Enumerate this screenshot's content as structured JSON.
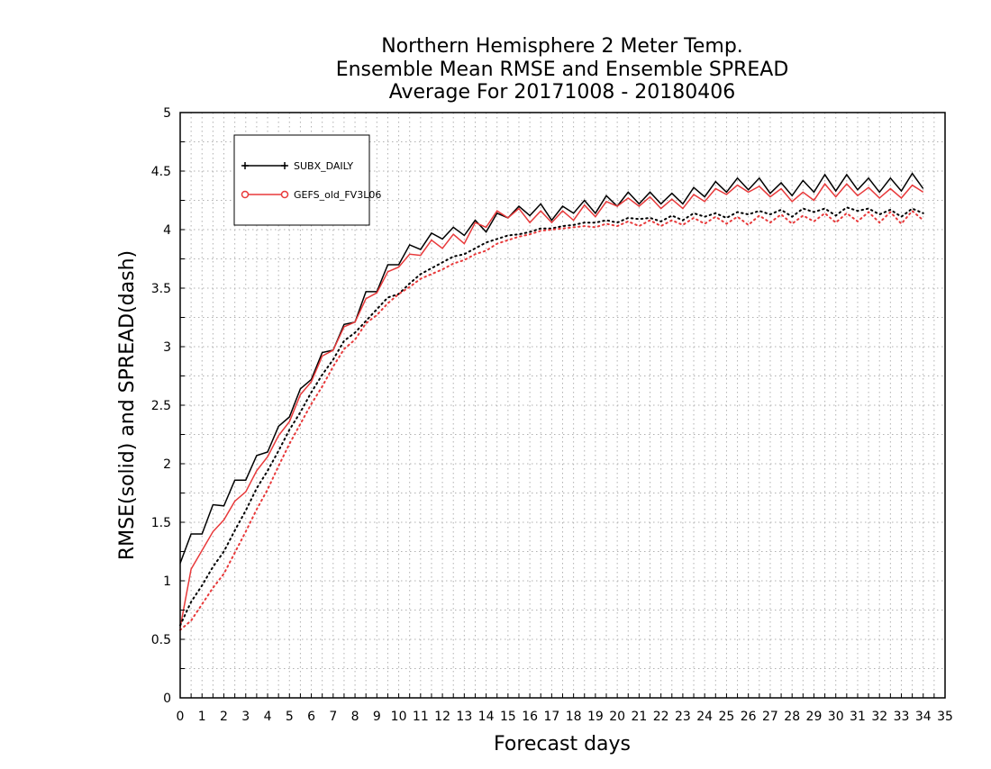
{
  "chart_data": {
    "type": "line",
    "title": [
      "Northern Hemisphere 2 Meter Temp.",
      "Ensemble Mean RMSE and Ensemble SPREAD",
      "Average For 20171008 - 20180406"
    ],
    "xlabel": "Forecast days",
    "ylabel": "RMSE(solid) and SPREAD(dash)",
    "xlim": [
      0,
      35
    ],
    "ylim": [
      0,
      5
    ],
    "x_ticks": [
      "0",
      "1",
      "2",
      "3",
      "4",
      "5",
      "6",
      "7",
      "8",
      "9",
      "10",
      "11",
      "12",
      "13",
      "14",
      "15",
      "16",
      "17",
      "18",
      "19",
      "20",
      "21",
      "22",
      "23",
      "24",
      "25",
      "26",
      "27",
      "28",
      "29",
      "30",
      "31",
      "32",
      "33",
      "34",
      "35"
    ],
    "y_ticks": [
      "0",
      "0.5",
      "1",
      "1.5",
      "2",
      "2.5",
      "3",
      "3.5",
      "4",
      "4.5",
      "5"
    ],
    "grid": true,
    "legend_position": "top-left",
    "x_step": 0.5,
    "series": [
      {
        "name": "SUBX_DAILY",
        "metric": "RMSE",
        "style": "solid",
        "marker": "plus",
        "color": "#000000",
        "values": [
          1.15,
          1.4,
          1.4,
          1.65,
          1.64,
          1.86,
          1.86,
          2.07,
          2.1,
          2.32,
          2.4,
          2.64,
          2.72,
          2.95,
          2.97,
          3.19,
          3.21,
          3.47,
          3.47,
          3.7,
          3.7,
          3.87,
          3.83,
          3.97,
          3.92,
          4.02,
          3.95,
          4.08,
          3.98,
          4.14,
          4.1,
          4.2,
          4.12,
          4.22,
          4.08,
          4.2,
          4.14,
          4.25,
          4.14,
          4.29,
          4.2,
          4.32,
          4.22,
          4.32,
          4.22,
          4.31,
          4.22,
          4.36,
          4.28,
          4.41,
          4.32,
          4.44,
          4.34,
          4.44,
          4.31,
          4.4,
          4.29,
          4.42,
          4.32,
          4.47,
          4.33,
          4.47,
          4.34,
          4.44,
          4.32,
          4.44,
          4.33,
          4.48,
          4.35
        ]
      },
      {
        "name": "GEFS_old_FV3L06",
        "metric": "RMSE",
        "style": "solid",
        "marker": "circle",
        "color": "#e8393a",
        "values": [
          0.6,
          1.1,
          1.26,
          1.42,
          1.52,
          1.68,
          1.76,
          1.94,
          2.06,
          2.24,
          2.36,
          2.59,
          2.7,
          2.92,
          2.97,
          3.17,
          3.21,
          3.41,
          3.46,
          3.64,
          3.68,
          3.79,
          3.78,
          3.91,
          3.84,
          3.96,
          3.88,
          4.06,
          4.02,
          4.16,
          4.1,
          4.18,
          4.06,
          4.16,
          4.06,
          4.16,
          4.08,
          4.21,
          4.11,
          4.24,
          4.2,
          4.27,
          4.2,
          4.28,
          4.18,
          4.26,
          4.18,
          4.3,
          4.24,
          4.35,
          4.3,
          4.38,
          4.32,
          4.37,
          4.28,
          4.35,
          4.24,
          4.32,
          4.25,
          4.39,
          4.28,
          4.39,
          4.29,
          4.36,
          4.27,
          4.35,
          4.27,
          4.38,
          4.32
        ]
      },
      {
        "name": "SUBX_DAILY",
        "metric": "SPREAD",
        "style": "dotted",
        "color": "#000000",
        "values": [
          0.62,
          0.82,
          0.96,
          1.12,
          1.25,
          1.43,
          1.6,
          1.79,
          1.94,
          2.11,
          2.29,
          2.44,
          2.61,
          2.76,
          2.89,
          3.05,
          3.12,
          3.22,
          3.32,
          3.42,
          3.45,
          3.54,
          3.62,
          3.67,
          3.72,
          3.77,
          3.79,
          3.84,
          3.89,
          3.92,
          3.95,
          3.96,
          3.98,
          4.01,
          4.01,
          4.03,
          4.04,
          4.06,
          4.06,
          4.08,
          4.06,
          4.1,
          4.09,
          4.1,
          4.07,
          4.12,
          4.08,
          4.14,
          4.11,
          4.14,
          4.1,
          4.15,
          4.13,
          4.16,
          4.13,
          4.17,
          4.11,
          4.18,
          4.15,
          4.18,
          4.12,
          4.19,
          4.16,
          4.18,
          4.13,
          4.17,
          4.11,
          4.18,
          4.14
        ]
      },
      {
        "name": "GEFS_old_FV3L06",
        "metric": "SPREAD",
        "style": "dotted",
        "color": "#e8393a",
        "values": [
          0.58,
          0.66,
          0.8,
          0.94,
          1.06,
          1.24,
          1.42,
          1.61,
          1.78,
          1.98,
          2.17,
          2.34,
          2.51,
          2.66,
          2.83,
          2.98,
          3.06,
          3.2,
          3.27,
          3.37,
          3.45,
          3.51,
          3.58,
          3.62,
          3.66,
          3.71,
          3.74,
          3.79,
          3.82,
          3.88,
          3.91,
          3.94,
          3.96,
          3.99,
          4.0,
          4.01,
          4.02,
          4.03,
          4.02,
          4.05,
          4.03,
          4.07,
          4.03,
          4.08,
          4.03,
          4.08,
          4.04,
          4.1,
          4.05,
          4.11,
          4.05,
          4.11,
          4.04,
          4.12,
          4.06,
          4.13,
          4.05,
          4.12,
          4.07,
          4.14,
          4.06,
          4.14,
          4.07,
          4.15,
          4.06,
          4.15,
          4.05,
          4.16,
          4.08
        ]
      }
    ]
  },
  "legend": {
    "entries": [
      {
        "label": "SUBX_DAILY",
        "marker": "plus-icon",
        "color": "#000000"
      },
      {
        "label": "GEFS_old_FV3L06",
        "marker": "circle-icon",
        "color": "#e8393a"
      }
    ]
  }
}
